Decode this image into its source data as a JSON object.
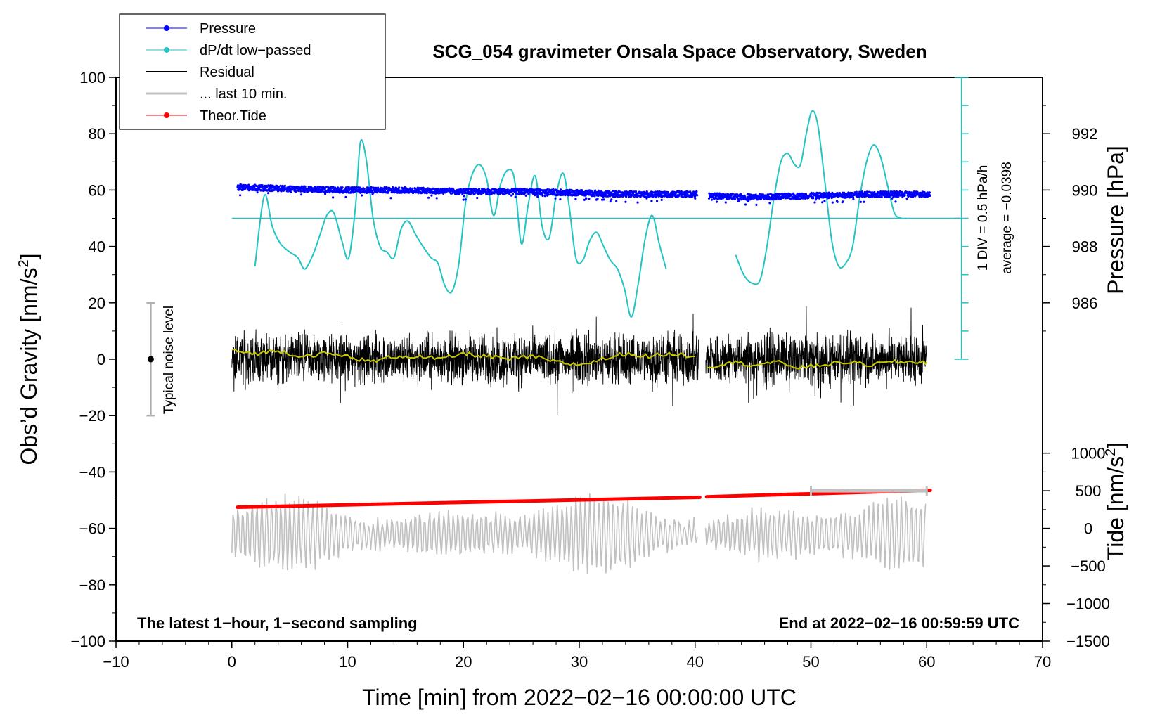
{
  "chart_data": {
    "type": "line",
    "title": "SCG_054 gravimeter Onsala Space Observatory, Sweden",
    "xlabel": "Time [min] from 2022−02−16 00:00:00 UTC",
    "ylabel_left": "Obs’d Gravity [nm/s²]",
    "ylabel_left_main": "Obs’d Gravity [nm/s",
    "ylabel_pressure_main": "Pressure [hPa]",
    "ylabel_tide_main": "Tide [nm/s",
    "superscript_2": "2",
    "closing_bracket": "]",
    "xlim": [
      -10,
      70
    ],
    "ylim_left": [
      -100,
      100
    ],
    "x_ticks": [
      -10,
      0,
      10,
      20,
      30,
      40,
      50,
      60,
      70
    ],
    "x_tick_labels": [
      "−10",
      "0",
      "10",
      "20",
      "30",
      "40",
      "50",
      "60",
      "70"
    ],
    "y_ticks_left": [
      100,
      80,
      60,
      40,
      20,
      0,
      -20,
      -40,
      -60,
      -80,
      -100
    ],
    "y_tick_labels_left": [
      "100",
      "80",
      "60",
      "40",
      "20",
      "0",
      "−20",
      "−40",
      "−60",
      "−80",
      "−100"
    ],
    "pressure_axis": {
      "ticks": [
        992,
        990,
        988,
        986
      ],
      "tick_labels": [
        "992",
        "990",
        "988",
        "986"
      ],
      "unit_per_left": 0.1,
      "ref_pressure": 990,
      "ref_left": 60
    },
    "tide_axis": {
      "ticks": [
        1000,
        500,
        0,
        -500,
        -1000,
        -1500
      ],
      "tick_labels": [
        "1000",
        "500",
        "0",
        "−500",
        "−1000",
        "−1500"
      ],
      "tide_at_left_minus100": -1500,
      "tide_per_left": 37.5
    },
    "legend": {
      "position": "top-left",
      "entries": [
        {
          "label": "Pressure",
          "color": "#0000ff",
          "marker": "dot"
        },
        {
          "label": "dP/dt low−passed",
          "color": "#22c4c4",
          "marker": "dot"
        },
        {
          "label": "Residual",
          "color": "#000000",
          "marker": "none"
        },
        {
          "label": "... last 10 min.",
          "color": "#c0c0c0",
          "marker": "none"
        },
        {
          "label": "Theor.Tide",
          "color": "#ff0000",
          "marker": "dot"
        }
      ]
    },
    "annotations": {
      "noise_label": "Typical noise level",
      "noise_center": 0,
      "noise_halfwidth": 20,
      "noise_x": -7,
      "dpdt_scale_label": "1 DIV = 0.5 hPa/h",
      "dpdt_average_label": "average = −0.0398",
      "bottom_left": "The latest 1−hour, 1−second sampling",
      "bottom_right": "End at 2022−02−16 00:59:59 UTC",
      "last10_bar": {
        "x_start": 50,
        "x_end": 60,
        "tide": 500
      }
    },
    "series": [
      {
        "name": "Pressure",
        "axis": "pressure",
        "color": "#0000ff",
        "segments": [
          {
            "x": [
              0.5,
              5,
              10,
              15,
              20,
              25,
              30,
              35,
              40.2
            ],
            "y": [
              990.1,
              990.05,
              990.0,
              990.0,
              989.95,
              989.95,
              989.9,
              989.85,
              989.85
            ]
          },
          {
            "x": [
              41.2,
              45,
              50,
              55,
              60.3
            ],
            "y": [
              989.8,
              989.75,
              989.8,
              989.85,
              989.85
            ]
          }
        ],
        "scatter_amplitude_hPa": 0.1
      },
      {
        "name": "dP/dt low-passed",
        "axis": "left",
        "color": "#22c4c4",
        "baseline": 50,
        "segments": [
          {
            "x": [
              2.0,
              2.8,
              3.5,
              4.2,
              5.0,
              5.7,
              6.3,
              7.0,
              7.6,
              8.2,
              8.8,
              9.5,
              10.1,
              10.7,
              11.1,
              11.6,
              12.2,
              12.8,
              13.4,
              14.0,
              14.6,
              15.2,
              15.9,
              16.5,
              17.2,
              17.8,
              18.4,
              19.0,
              19.6,
              20.2,
              20.8,
              21.4,
              22.0,
              22.6,
              23.2,
              23.8,
              24.4,
              25.0,
              25.6,
              26.2,
              26.8,
              27.4,
              28.0,
              28.6,
              29.1,
              29.7,
              30.3,
              30.9,
              31.5,
              32.1,
              32.7,
              33.3,
              33.9,
              34.5,
              35.1,
              35.7,
              36.3,
              36.9,
              37.5
            ],
            "y": [
              33,
              58,
              47,
              41,
              38,
              36,
              32,
              37,
              44,
              51,
              52,
              42,
              36,
              55,
              77,
              71,
              50,
              40,
              38,
              36,
              46,
              49,
              44,
              40,
              36,
              34,
              26,
              24,
              34,
              56,
              66,
              69,
              64,
              51,
              62,
              67,
              64,
              41,
              55,
              65,
              47,
              43,
              58,
              66,
              55,
              36,
              35,
              42,
              45,
              40,
              35,
              32,
              25,
              15,
              27,
              43,
              51,
              41,
              32
            ]
          },
          {
            "x": [
              43.5,
              44.2,
              44.9,
              45.6,
              46.2,
              46.8,
              47.4,
              48.0,
              48.6,
              49.1,
              49.6,
              50.1,
              50.6,
              51.2,
              51.8,
              52.4,
              53.0,
              53.6,
              54.2,
              54.8,
              55.4,
              56.0,
              56.6,
              57.2,
              57.8,
              58.3
            ],
            "y": [
              37,
              30,
              27,
              28,
              40,
              57,
              70,
              73,
              69,
              69,
              80,
              88,
              83,
              63,
              42,
              33,
              34,
              40,
              57,
              70,
              76,
              72,
              62,
              52,
              50,
              50
            ]
          }
        ]
      },
      {
        "name": "Residual",
        "axis": "left",
        "color": "#000000",
        "segments": [
          {
            "x_start": 0,
            "x_end": 40.3,
            "amplitude": 14,
            "center": 0
          },
          {
            "x_start": 40.9,
            "x_end": 60,
            "amplitude": 14,
            "center": 0
          }
        ],
        "smoothed": {
          "color": "#c8c800",
          "segments": [
            {
              "x": [
                0,
                2,
                4,
                6,
                8,
                10,
                12,
                14,
                16,
                18,
                20,
                22,
                24,
                26,
                28,
                30,
                32,
                34,
                36,
                38,
                40
              ],
              "y": [
                3,
                2,
                3,
                1,
                2,
                1,
                -1,
                1,
                1,
                0,
                2,
                1,
                0,
                1,
                -1,
                -2,
                0,
                2,
                1,
                2,
                1
              ]
            },
            {
              "x": [
                41,
                43,
                45,
                47,
                49,
                51,
                53,
                55,
                57,
                59,
                60
              ],
              "y": [
                -3,
                -1,
                -2,
                -1,
                -3,
                -2,
                -1,
                -2,
                -1,
                -1,
                -1
              ]
            }
          ]
        }
      },
      {
        "name": "... last 10 min.",
        "axis": "left",
        "color": "#c0c0c0",
        "segments": [
          {
            "x_start": 0,
            "x_end": 40.3,
            "amplitude": 11,
            "center": -62
          },
          {
            "x_start": 40.9,
            "x_end": 60,
            "amplitude": 11,
            "center": -62
          }
        ]
      },
      {
        "name": "Theor.Tide",
        "axis": "left",
        "color": "#ff0000",
        "segments": [
          {
            "x": [
              0.5,
              40.4
            ],
            "y": [
              -52.5,
              -49.0
            ]
          },
          {
            "x": [
              41.0,
              60.3
            ],
            "y": [
              -48.8,
              -46.5
            ]
          }
        ]
      }
    ]
  }
}
